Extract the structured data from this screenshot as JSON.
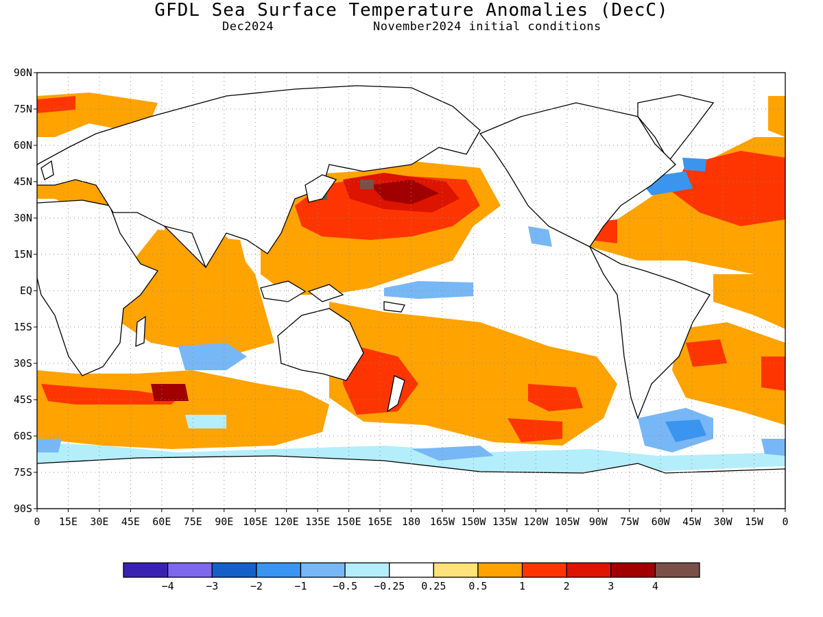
{
  "header": {
    "title": "GFDL Sea Surface Temperature Anomalies (DecC)",
    "valid_month": "Dec2024",
    "initial_conditions": "November2024 initial conditions"
  },
  "map": {
    "lat_labels": [
      "90N",
      "75N",
      "60N",
      "45N",
      "30N",
      "15N",
      "EQ",
      "15S",
      "30S",
      "45S",
      "60S",
      "75S",
      "90S"
    ],
    "lon_labels": [
      "0",
      "15E",
      "30E",
      "45E",
      "60E",
      "75E",
      "90E",
      "105E",
      "120E",
      "135E",
      "150E",
      "165E",
      "180",
      "165W",
      "150W",
      "135W",
      "120W",
      "105W",
      "90W",
      "75W",
      "60W",
      "45W",
      "30W",
      "15W",
      "0"
    ]
  },
  "legend": {
    "colors": [
      "#3a22b0",
      "#7d68ea",
      "#1560c8",
      "#3a95f0",
      "#78b7f5",
      "#b4eefa",
      "#ffffff",
      "#ffe27a",
      "#ffa300",
      "#ff3500",
      "#dd1400",
      "#a00000",
      "#7a5048"
    ],
    "labels": [
      "−4",
      "−3",
      "−2",
      "−1",
      "−0.5",
      "−0.25",
      "0.25",
      "0.5",
      "1",
      "2",
      "3",
      "4"
    ]
  }
}
